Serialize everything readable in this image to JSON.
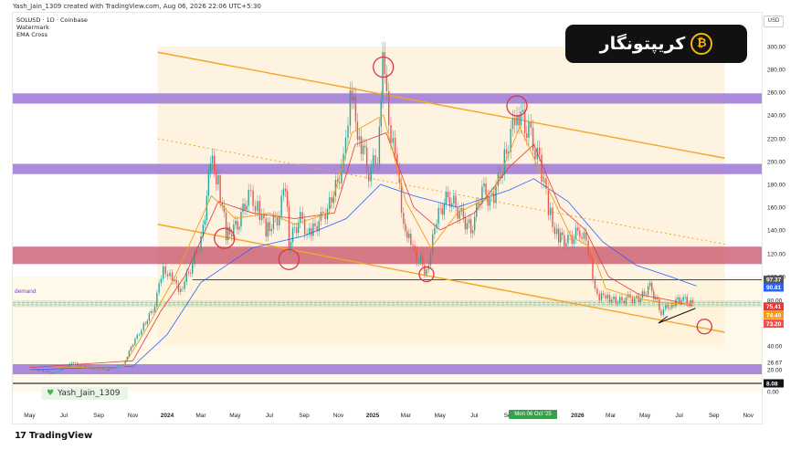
{
  "header": {
    "attribution": "Yash_Jain_1309 created with TradingView.com, Aug 06, 2026 22:06 UTC+5:30"
  },
  "legend": {
    "symbol_line": "SOLUSD · 1D · Coinbase",
    "line2": "Watermark",
    "line3": "EMA Cross"
  },
  "brand": {
    "text": "کریپتونگار",
    "coin_glyph": "₿"
  },
  "currency": "USD",
  "demand_label": "demand",
  "author_tag": "Yash_Jain_1309",
  "footer": {
    "mark": "17",
    "name": "TradingView"
  },
  "date_flag": "Mon 06 Oct '25",
  "colors": {
    "zone_purple": "#9c78d6",
    "zone_red": "#c8506a",
    "channel": "#f4a52a",
    "circle": "#d9344a",
    "candle_up": "#26a69a",
    "candle_down": "#ef5350",
    "ema_fast": "#f39c12",
    "ema_slow": "#2962ff",
    "ema_mid": "#e53935"
  },
  "chart_data": {
    "type": "candlestick",
    "symbol": "SOLUSD",
    "timeframe": "1D",
    "exchange": "Coinbase",
    "y_axis": {
      "ticks": [
        "300.00",
        "280.00",
        "260.00",
        "240.00",
        "220.00",
        "200.00",
        "180.00",
        "160.00",
        "140.00",
        "120.00",
        "100.00",
        "80.00",
        "60.00",
        "40.00",
        "26.67",
        "20.00",
        "8.08",
        "0.00"
      ],
      "range": [
        0,
        310
      ]
    },
    "x_axis": {
      "ticks": [
        "May",
        "Jul",
        "Sep",
        "Nov",
        "2024",
        "Mar",
        "May",
        "Jul",
        "Sep",
        "Nov",
        "2025",
        "Mar",
        "May",
        "Jul",
        "Sep",
        "2026",
        "Mar",
        "May",
        "Jul",
        "Sep",
        "Nov"
      ]
    },
    "price_labels": [
      {
        "value": "97.37",
        "color": "#555555"
      },
      {
        "value": "90.81",
        "color": "#2962ff"
      },
      {
        "value": "75.41",
        "color": "#e53935"
      },
      {
        "value": "74.40",
        "color": "#f39c12"
      },
      {
        "value": "73.20",
        "color": "#ef5350"
      },
      {
        "value": "8.08",
        "color": "#111111"
      }
    ],
    "zones": [
      {
        "kind": "supply",
        "from": 250,
        "to": 259
      },
      {
        "kind": "resistance",
        "from": 189,
        "to": 198
      },
      {
        "kind": "support",
        "from": 111,
        "to": 126
      },
      {
        "kind": "demand",
        "from": 74,
        "to": 80
      },
      {
        "kind": "base",
        "from": 16,
        "to": 25
      }
    ],
    "close_path": [
      [
        "2023-05-01",
        21
      ],
      [
        "2023-06-15",
        17
      ],
      [
        "2023-07-15",
        26
      ],
      [
        "2023-08-15",
        22
      ],
      [
        "2023-09-15",
        20
      ],
      [
        "2023-10-15",
        25
      ],
      [
        "2023-11-01",
        42
      ],
      [
        "2023-11-20",
        58
      ],
      [
        "2023-12-10",
        75
      ],
      [
        "2023-12-25",
        110
      ],
      [
        "2024-01-10",
        95
      ],
      [
        "2024-01-25",
        90
      ],
      [
        "2024-02-15",
        110
      ],
      [
        "2024-03-05",
        140
      ],
      [
        "2024-03-18",
        200
      ],
      [
        "2024-04-01",
        185
      ],
      [
        "2024-04-15",
        135
      ],
      [
        "2024-05-05",
        145
      ],
      [
        "2024-05-25",
        170
      ],
      [
        "2024-06-10",
        160
      ],
      [
        "2024-06-25",
        140
      ],
      [
        "2024-07-15",
        150
      ],
      [
        "2024-07-30",
        180
      ],
      [
        "2024-08-05",
        130
      ],
      [
        "2024-08-25",
        150
      ],
      [
        "2024-09-10",
        135
      ],
      [
        "2024-10-01",
        150
      ],
      [
        "2024-10-20",
        165
      ],
      [
        "2024-11-10",
        200
      ],
      [
        "2024-11-22",
        260
      ],
      [
        "2024-12-05",
        230
      ],
      [
        "2024-12-25",
        190
      ],
      [
        "2025-01-10",
        205
      ],
      [
        "2025-01-19",
        290
      ],
      [
        "2025-01-26",
        250
      ],
      [
        "2025-02-10",
        200
      ],
      [
        "2025-02-25",
        150
      ],
      [
        "2025-03-10",
        125
      ],
      [
        "2025-04-07",
        105
      ],
      [
        "2025-04-25",
        150
      ],
      [
        "2025-05-15",
        170
      ],
      [
        "2025-06-05",
        155
      ],
      [
        "2025-06-25",
        140
      ],
      [
        "2025-07-15",
        175
      ],
      [
        "2025-08-01",
        165
      ],
      [
        "2025-08-20",
        195
      ],
      [
        "2025-09-15",
        245
      ],
      [
        "2025-10-06",
        225
      ],
      [
        "2025-10-25",
        200
      ],
      [
        "2025-11-10",
        160
      ],
      [
        "2025-11-25",
        135
      ],
      [
        "2025-12-15",
        130
      ],
      [
        "2026-01-05",
        140
      ],
      [
        "2026-01-20",
        125
      ],
      [
        "2026-02-05",
        80
      ],
      [
        "2026-02-20",
        85
      ],
      [
        "2026-03-10",
        78
      ],
      [
        "2026-04-01",
        82
      ],
      [
        "2026-04-20",
        80
      ],
      [
        "2026-05-10",
        92
      ],
      [
        "2026-05-30",
        70
      ],
      [
        "2026-06-15",
        76
      ],
      [
        "2026-07-05",
        82
      ],
      [
        "2026-07-25",
        76
      ]
    ],
    "ema_fast": [
      [
        "2023-05-01",
        21
      ],
      [
        "2023-10-15",
        23
      ],
      [
        "2023-12-01",
        60
      ],
      [
        "2024-01-15",
        100
      ],
      [
        "2024-03-20",
        170
      ],
      [
        "2024-05-01",
        150
      ],
      [
        "2024-07-01",
        155
      ],
      [
        "2024-08-15",
        145
      ],
      [
        "2024-10-15",
        155
      ],
      [
        "2024-11-25",
        225
      ],
      [
        "2025-01-20",
        240
      ],
      [
        "2025-03-01",
        165
      ],
      [
        "2025-04-15",
        125
      ],
      [
        "2025-06-01",
        155
      ],
      [
        "2025-08-01",
        170
      ],
      [
        "2025-09-20",
        230
      ],
      [
        "2025-11-01",
        185
      ],
      [
        "2025-12-20",
        135
      ],
      [
        "2026-01-25",
        125
      ],
      [
        "2026-02-20",
        90
      ],
      [
        "2026-04-15",
        82
      ],
      [
        "2026-05-30",
        78
      ],
      [
        "2026-07-25",
        76
      ]
    ],
    "ema_mid": [
      [
        "2023-05-01",
        22
      ],
      [
        "2023-11-01",
        28
      ],
      [
        "2023-12-20",
        70
      ],
      [
        "2024-02-01",
        100
      ],
      [
        "2024-04-01",
        165
      ],
      [
        "2024-06-01",
        155
      ],
      [
        "2024-08-15",
        150
      ],
      [
        "2024-10-25",
        155
      ],
      [
        "2024-12-01",
        215
      ],
      [
        "2025-01-25",
        225
      ],
      [
        "2025-03-15",
        160
      ],
      [
        "2025-05-01",
        140
      ],
      [
        "2025-07-01",
        155
      ],
      [
        "2025-09-01",
        195
      ],
      [
        "2025-10-15",
        215
      ],
      [
        "2025-12-01",
        160
      ],
      [
        "2026-01-15",
        140
      ],
      [
        "2026-02-25",
        100
      ],
      [
        "2026-04-20",
        85
      ],
      [
        "2026-06-15",
        80
      ],
      [
        "2026-07-25",
        75
      ]
    ],
    "ema_slow": [
      [
        "2023-05-01",
        20
      ],
      [
        "2023-11-01",
        23
      ],
      [
        "2024-01-01",
        50
      ],
      [
        "2024-03-01",
        95
      ],
      [
        "2024-06-01",
        125
      ],
      [
        "2024-09-01",
        135
      ],
      [
        "2024-11-15",
        150
      ],
      [
        "2025-01-15",
        180
      ],
      [
        "2025-03-15",
        170
      ],
      [
        "2025-06-01",
        160
      ],
      [
        "2025-09-01",
        175
      ],
      [
        "2025-10-15",
        185
      ],
      [
        "2025-12-15",
        165
      ],
      [
        "2026-02-15",
        130
      ],
      [
        "2026-04-15",
        110
      ],
      [
        "2026-06-15",
        100
      ],
      [
        "2026-08-01",
        92
      ]
    ],
    "channel": {
      "upper": [
        [
          "2023-12-15",
          295
        ],
        [
          "2026-09-20",
          203
        ]
      ],
      "lower": [
        [
          "2023-12-15",
          145
        ],
        [
          "2026-09-20",
          52
        ]
      ],
      "mid": [
        [
          "2023-12-15",
          220
        ],
        [
          "2026-09-20",
          128
        ]
      ]
    },
    "horizontal_lines": [
      97.37,
      8.08
    ],
    "triangle": [
      [
        "2026-05-25",
        60
      ],
      [
        "2026-07-30",
        73
      ],
      [
        "2026-06-10",
        66
      ]
    ],
    "circles": [
      [
        "2024-04-12",
        133
      ],
      [
        "2024-08-05",
        115
      ],
      [
        "2025-01-20",
        282
      ],
      [
        "2025-04-07",
        102
      ],
      [
        "2025-09-15",
        248
      ],
      [
        "2026-08-15",
        57
      ]
    ]
  }
}
